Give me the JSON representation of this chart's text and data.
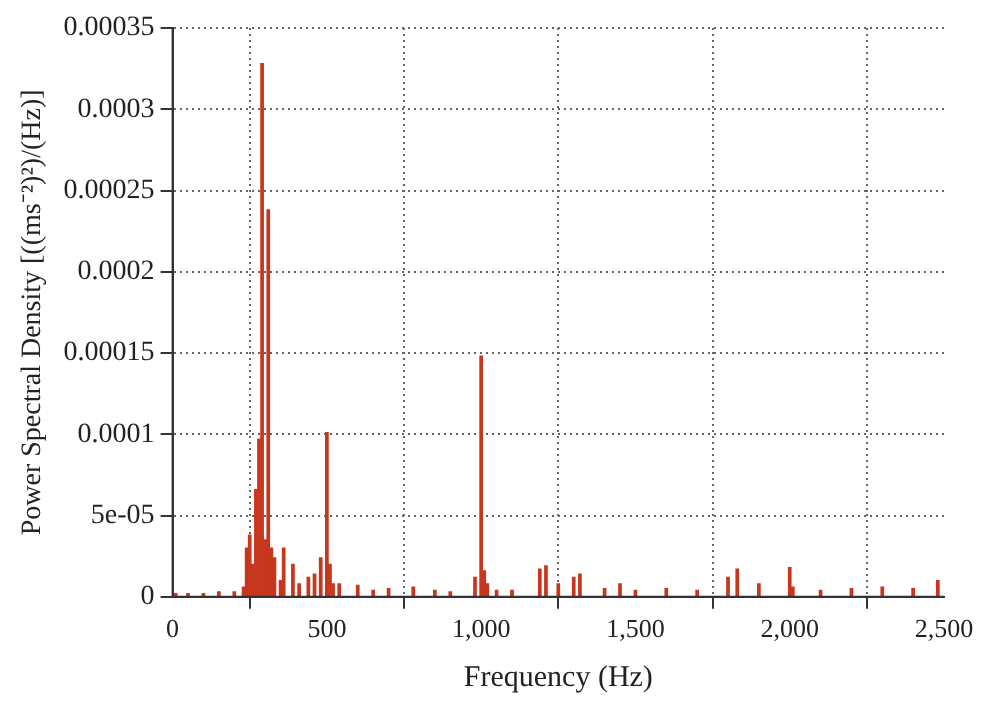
{
  "chart_data": {
    "type": "bar",
    "xlabel": "Frequency (Hz)",
    "ylabel": "Power Spectral Density [((ms⁻²)²)/(Hz)]",
    "x": [
      10,
      50,
      100,
      150,
      200,
      230,
      240,
      250,
      260,
      270,
      280,
      290,
      300,
      310,
      320,
      330,
      350,
      360,
      390,
      410,
      440,
      460,
      480,
      500,
      510,
      520,
      540,
      600,
      650,
      700,
      780,
      850,
      900,
      980,
      1000,
      1010,
      1020,
      1050,
      1100,
      1190,
      1210,
      1250,
      1300,
      1320,
      1400,
      1450,
      1500,
      1600,
      1700,
      1800,
      1830,
      1900,
      2000,
      2010,
      2100,
      2200,
      2300,
      2400,
      2480
    ],
    "series": [
      {
        "color": "#c8361e",
        "values": [
          2e-06,
          2e-06,
          2e-06,
          3e-06,
          3e-06,
          6e-06,
          3e-05,
          3.8e-05,
          2e-05,
          6.6e-05,
          9.7e-05,
          0.000328,
          3.5e-05,
          0.000238,
          3e-05,
          2.4e-05,
          1e-05,
          3e-05,
          2e-05,
          8e-06,
          1.2e-05,
          1.4e-05,
          2.4e-05,
          0.000101,
          2e-05,
          8e-06,
          8e-06,
          7e-06,
          4e-06,
          5e-06,
          6e-06,
          4e-06,
          3e-06,
          1.2e-05,
          0.000148,
          1.6e-05,
          8e-06,
          4e-06,
          4e-06,
          1.7e-05,
          1.9e-05,
          8e-06,
          1.2e-05,
          1.4e-05,
          5e-06,
          8e-06,
          4e-06,
          5e-06,
          4e-06,
          1.2e-05,
          1.7e-05,
          8e-06,
          1.8e-05,
          6e-06,
          4e-06,
          5e-06,
          6e-06,
          5e-06,
          1e-05
        ]
      }
    ],
    "xlim": [
      0,
      2500
    ],
    "xticks": [
      0,
      500,
      {
        "value": 1000,
        "label": "1,000"
      },
      {
        "value": 1500,
        "label": "1,500"
      },
      {
        "value": 2000,
        "label": "2,000"
      },
      {
        "value": 2500,
        "label": "2,500"
      }
    ],
    "ylim": [
      0,
      0.00035
    ],
    "yticks": [
      0,
      {
        "value": 5e-05,
        "label": "5e-05"
      },
      0.0001,
      0.00015,
      0.0002,
      0.00025,
      0.0003,
      0.00035
    ],
    "grid": true,
    "legend": false
  }
}
